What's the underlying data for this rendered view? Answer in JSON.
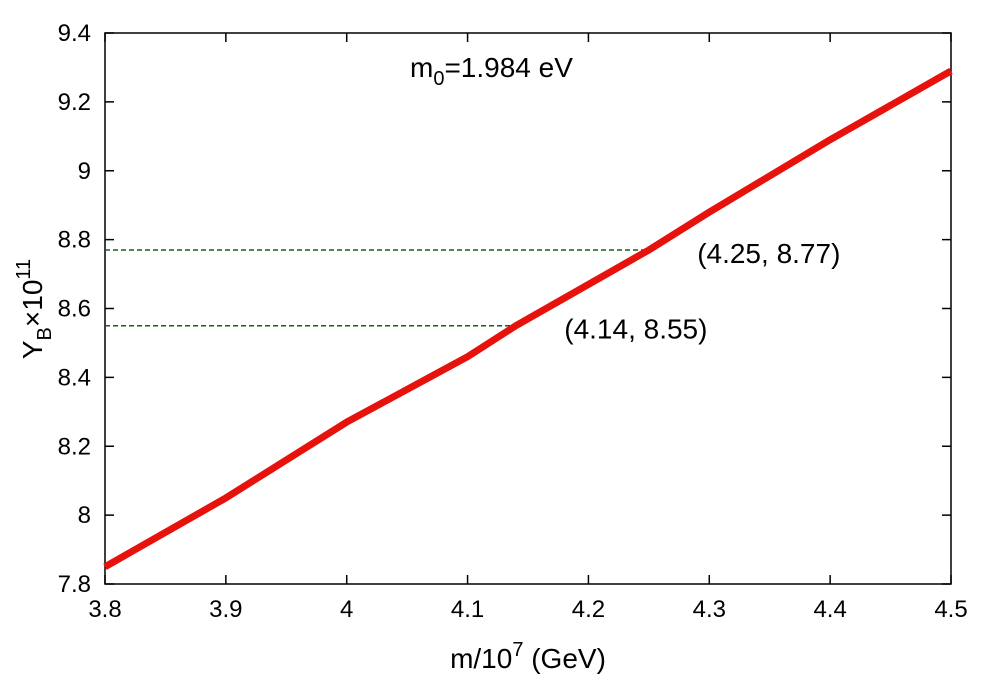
{
  "chart_data": {
    "type": "line",
    "xlabel": {
      "base": "m/10",
      "sup": "7",
      "unit": " (GeV)"
    },
    "ylabel": {
      "base": "Y",
      "sub": "B",
      "mid": "×10",
      "sup": "11"
    },
    "xlim": [
      3.8,
      4.5
    ],
    "ylim": [
      7.8,
      9.4
    ],
    "x_ticks": [
      "3.8",
      "3.9",
      "4",
      "4.1",
      "4.2",
      "4.3",
      "4.4",
      "4.5"
    ],
    "y_ticks": [
      "7.8",
      "8",
      "8.2",
      "8.4",
      "8.6",
      "8.8",
      "9",
      "9.2",
      "9.4"
    ],
    "grid": false,
    "series": [
      {
        "color": "#e8120c",
        "x": [
          3.8,
          3.9,
          4.0,
          4.1,
          4.14,
          4.2,
          4.25,
          4.3,
          4.4,
          4.5
        ],
        "y": [
          7.85,
          8.05,
          8.27,
          8.46,
          8.55,
          8.67,
          8.77,
          8.88,
          9.09,
          9.29
        ]
      }
    ],
    "reference_lines": [
      {
        "x": 4.25,
        "y": 8.77,
        "color": "#1a5c1a"
      },
      {
        "x": 4.14,
        "y": 8.55,
        "color": "#1a5c1a"
      }
    ],
    "annotations": [
      {
        "text": "(4.25, 8.77)",
        "x": 4.29,
        "y": 8.77
      },
      {
        "text": "(4.14, 8.55)",
        "x": 4.18,
        "y": 8.55
      }
    ],
    "title_annotation": {
      "base": "m",
      "sub": "0",
      "rest": "=1.984 eV"
    }
  }
}
